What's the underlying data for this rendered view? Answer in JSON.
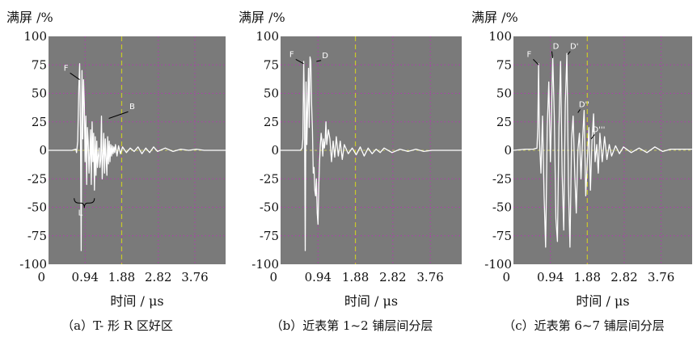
{
  "figure": {
    "panels": [
      {
        "caption": "（a）T- 形 R 区好区",
        "ylabel": "满屏 /%",
        "xlabel": "时间 / μs",
        "annotations": [
          "F",
          "B",
          "L"
        ]
      },
      {
        "caption": "（b）近表第 1~2 铺层间分层",
        "ylabel": "满屏 /%",
        "xlabel": "时间 / μs",
        "annotations": [
          "F",
          "D"
        ]
      },
      {
        "caption": "（c）近表第 6~7 铺层间分层",
        "ylabel": "满屏 /%",
        "xlabel": "时间 / μs",
        "annotations": [
          "F",
          "D",
          "D'",
          "D''",
          "D'''"
        ]
      }
    ],
    "colors": {
      "plot_background": "#7a7a7a",
      "signal": "#ffffff",
      "grid": "#b23bb0",
      "zero_line": "#c8c860",
      "gate_line": "#c8c82a"
    }
  },
  "chart_data": [
    {
      "type": "line",
      "caption": "（a）T- 形 R 区好区",
      "xlabel": "时间 / μs",
      "ylabel": "满屏 /%",
      "xticks": [
        "0",
        "0.94",
        "1.88",
        "2.82",
        "3.76"
      ],
      "yticks": [
        "100",
        "75",
        "50",
        "25",
        "0",
        "-25",
        "-50",
        "-75",
        "-100"
      ],
      "xlim": [
        0,
        4.55
      ],
      "ylim": [
        -100,
        100
      ],
      "grid": true,
      "gate_x": 1.88,
      "series": [
        {
          "x": [
            0.0,
            0.6,
            0.7,
            0.72,
            0.75,
            0.78,
            0.8,
            0.82,
            0.84,
            0.86,
            0.88,
            0.9,
            0.92,
            0.94,
            0.96,
            0.98,
            1.0,
            1.02,
            1.04,
            1.06,
            1.08,
            1.1,
            1.12,
            1.14,
            1.16,
            1.18,
            1.2,
            1.22,
            1.24,
            1.26,
            1.28,
            1.3,
            1.32,
            1.34,
            1.36,
            1.38,
            1.4,
            1.42,
            1.44,
            1.46,
            1.48,
            1.5,
            1.52,
            1.54,
            1.56,
            1.58,
            1.6,
            1.62,
            1.64,
            1.66,
            1.68,
            1.7,
            1.72,
            1.76,
            1.8,
            1.85,
            1.9,
            2.0,
            2.1,
            2.2,
            2.3,
            2.4,
            2.5,
            2.6,
            2.7,
            2.8,
            3.0,
            3.2,
            3.4,
            3.6,
            3.8,
            4.0,
            4.55
          ],
          "y": [
            0,
            0,
            1,
            -2,
            8,
            55,
            76,
            20,
            -88,
            70,
            10,
            62,
            40,
            -10,
            30,
            -30,
            20,
            8,
            -20,
            -5,
            18,
            -30,
            25,
            -10,
            15,
            -35,
            12,
            -22,
            8,
            -15,
            -5,
            2,
            -15,
            -8,
            30,
            -25,
            -5,
            15,
            -20,
            10,
            -5,
            -22,
            12,
            -12,
            8,
            -10,
            5,
            -5,
            4,
            -3,
            3,
            -2,
            5,
            -5,
            4,
            -3,
            3,
            -2,
            2,
            -1,
            3,
            -3,
            2,
            -2,
            3,
            -1,
            2,
            -1,
            1,
            0,
            1,
            0,
            0
          ]
        }
      ]
    },
    {
      "type": "line",
      "caption": "（b）近表第 1~2 铺层间分层",
      "xlabel": "时间 / μs",
      "ylabel": "满屏 /%",
      "xticks": [
        "0",
        "0.94",
        "1.88",
        "2.82",
        "3.76"
      ],
      "yticks": [
        "100",
        "75",
        "50",
        "25",
        "0",
        "-25",
        "-50",
        "-75",
        "-100"
      ],
      "xlim": [
        0,
        4.55
      ],
      "ylim": [
        -100,
        100
      ],
      "grid": true,
      "gate_x": 1.88,
      "series": [
        {
          "x": [
            0.0,
            0.5,
            0.54,
            0.56,
            0.58,
            0.6,
            0.62,
            0.64,
            0.66,
            0.7,
            0.72,
            0.74,
            0.76,
            0.78,
            0.8,
            0.82,
            0.84,
            0.86,
            0.88,
            0.9,
            0.92,
            0.94,
            0.96,
            0.98,
            1.0,
            1.02,
            1.04,
            1.06,
            1.08,
            1.1,
            1.12,
            1.14,
            1.16,
            1.2,
            1.24,
            1.28,
            1.32,
            1.36,
            1.4,
            1.45,
            1.5,
            1.55,
            1.6,
            1.7,
            1.8,
            1.9,
            2.0,
            2.1,
            2.2,
            2.3,
            2.4,
            2.5,
            2.6,
            2.8,
            3.0,
            3.2,
            3.4,
            3.6,
            3.8,
            4.0,
            4.55
          ],
          "y": [
            0,
            0,
            2,
            10,
            78,
            40,
            -88,
            60,
            5,
            72,
            20,
            82,
            78,
            40,
            18,
            -20,
            -15,
            -35,
            -40,
            -25,
            -55,
            -65,
            -30,
            -10,
            5,
            15,
            8,
            -5,
            10,
            2,
            8,
            25,
            5,
            18,
            10,
            -10,
            8,
            -6,
            12,
            -5,
            8,
            -8,
            5,
            -3,
            2,
            -4,
            3,
            -5,
            2,
            -3,
            1,
            -2,
            2,
            -2,
            1,
            -1,
            1,
            -1,
            0,
            0,
            0
          ]
        }
      ]
    },
    {
      "type": "line",
      "caption": "（c）近表第 6~7 铺层间分层",
      "xlabel": "时间 / μs",
      "ylabel": "满屏 /%",
      "xticks": [
        "0",
        "0.94",
        "1.88",
        "2.82",
        "3.76"
      ],
      "yticks": [
        "100",
        "75",
        "50",
        "25",
        "0",
        "-25",
        "-50",
        "-75",
        "-100"
      ],
      "xlim": [
        0,
        4.55
      ],
      "ylim": [
        -100,
        100
      ],
      "grid": true,
      "gate_x": 1.88,
      "series": [
        {
          "x": [
            0.0,
            0.3,
            0.5,
            0.6,
            0.62,
            0.64,
            0.66,
            0.7,
            0.74,
            0.78,
            0.82,
            0.86,
            0.9,
            0.94,
            1.0,
            1.04,
            1.08,
            1.12,
            1.16,
            1.2,
            1.24,
            1.28,
            1.32,
            1.36,
            1.4,
            1.44,
            1.48,
            1.52,
            1.56,
            1.6,
            1.64,
            1.68,
            1.72,
            1.76,
            1.8,
            1.84,
            1.88,
            1.92,
            1.96,
            2.0,
            2.04,
            2.08,
            2.12,
            2.16,
            2.2,
            2.26,
            2.32,
            2.38,
            2.44,
            2.5,
            2.6,
            2.7,
            2.8,
            3.0,
            3.2,
            3.4,
            3.6,
            3.8,
            4.0,
            4.55
          ],
          "y": [
            0,
            1,
            1,
            2,
            20,
            76,
            10,
            -20,
            30,
            -40,
            -85,
            20,
            60,
            -10,
            82,
            30,
            -60,
            -80,
            20,
            78,
            -20,
            -70,
            40,
            85,
            -30,
            -85,
            10,
            30,
            -20,
            -55,
            0,
            15,
            -25,
            10,
            35,
            -40,
            -10,
            20,
            -35,
            8,
            32,
            -10,
            5,
            -20,
            15,
            -10,
            12,
            -8,
            5,
            -5,
            4,
            -3,
            3,
            -2,
            2,
            -2,
            3,
            -1,
            1,
            1
          ]
        }
      ]
    }
  ]
}
